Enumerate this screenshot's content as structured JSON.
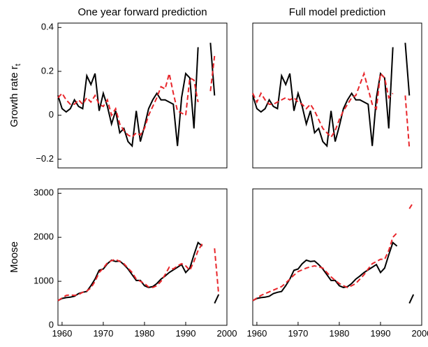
{
  "chart_data": [
    {
      "type": "line",
      "title": "One year forward prediction",
      "ylabel": "Growth rate r",
      "ylabel_subscript": "t",
      "x": [
        1959,
        1960,
        1961,
        1962,
        1963,
        1964,
        1965,
        1966,
        1967,
        1968,
        1969,
        1970,
        1971,
        1972,
        1973,
        1974,
        1975,
        1976,
        1977,
        1978,
        1979,
        1980,
        1981,
        1982,
        1983,
        1984,
        1985,
        1986,
        1987,
        1988,
        1989,
        1990,
        1991,
        1992,
        1993,
        1994,
        1995,
        1996,
        1997,
        1998
      ],
      "series": [
        {
          "color": "#000000",
          "linestyle": "solid",
          "values": [
            0.09,
            0.03,
            0.015,
            0.03,
            0.07,
            0.04,
            0.03,
            0.18,
            0.14,
            0.19,
            0.02,
            0.1,
            0.04,
            -0.04,
            0.02,
            -0.08,
            -0.06,
            -0.12,
            -0.14,
            0.02,
            -0.12,
            -0.05,
            0.03,
            0.07,
            0.1,
            0.07,
            0.07,
            0.06,
            0.05,
            -0.14,
            0.08,
            0.19,
            0.17,
            -0.06,
            0.31,
            null,
            null,
            0.33,
            0.09,
            null
          ]
        },
        {
          "color": "#e8262b",
          "linestyle": "dashed",
          "values": [
            0.08,
            0.1,
            0.07,
            0.05,
            0.05,
            0.07,
            0.05,
            0.08,
            0.06,
            0.09,
            0.05,
            0.04,
            0.07,
            0.0,
            0.03,
            -0.04,
            -0.07,
            -0.09,
            -0.1,
            -0.08,
            -0.09,
            -0.06,
            0.0,
            0.04,
            0.08,
            0.13,
            0.12,
            0.19,
            0.1,
            0.02,
            0.01,
            0.0,
            0.17,
            0.16,
            0.06,
            null,
            null,
            0.11,
            0.27,
            null
          ]
        }
      ],
      "xlim": [
        1959,
        2000
      ],
      "ylim": [
        -0.24,
        0.42
      ],
      "yticks": [
        {
          "value": -0.2,
          "label": "−0.2"
        },
        0,
        0.2,
        0.4
      ]
    },
    {
      "type": "line",
      "title": "Full model prediction",
      "x": [
        1959,
        1960,
        1961,
        1962,
        1963,
        1964,
        1965,
        1966,
        1967,
        1968,
        1969,
        1970,
        1971,
        1972,
        1973,
        1974,
        1975,
        1976,
        1977,
        1978,
        1979,
        1980,
        1981,
        1982,
        1983,
        1984,
        1985,
        1986,
        1987,
        1988,
        1989,
        1990,
        1991,
        1992,
        1993,
        1994,
        1995,
        1996,
        1997,
        1998
      ],
      "series": [
        {
          "color": "#000000",
          "linestyle": "solid",
          "values": [
            0.09,
            0.03,
            0.015,
            0.03,
            0.07,
            0.04,
            0.03,
            0.18,
            0.14,
            0.19,
            0.02,
            0.1,
            0.04,
            -0.04,
            0.02,
            -0.08,
            -0.06,
            -0.12,
            -0.14,
            0.02,
            -0.12,
            -0.05,
            0.03,
            0.07,
            0.1,
            0.07,
            0.07,
            0.06,
            0.05,
            -0.14,
            0.08,
            0.19,
            0.17,
            -0.06,
            0.31,
            null,
            null,
            0.33,
            0.09,
            null
          ]
        },
        {
          "color": "#e8262b",
          "linestyle": "dashed",
          "values": [
            0.1,
            0.06,
            0.1,
            0.07,
            0.05,
            0.05,
            0.06,
            0.07,
            0.08,
            0.07,
            0.08,
            0.06,
            0.05,
            0.03,
            0.05,
            0.02,
            -0.02,
            -0.06,
            -0.08,
            -0.1,
            -0.07,
            -0.02,
            0.02,
            0.05,
            0.08,
            0.09,
            0.14,
            0.19,
            0.12,
            0.05,
            0.03,
            0.19,
            0.17,
            0.08,
            0.1,
            null,
            null,
            0.09,
            -0.15,
            null
          ]
        }
      ],
      "xlim": [
        1959,
        2000
      ],
      "ylim": [
        -0.24,
        0.42
      ]
    },
    {
      "type": "line",
      "ylabel": "Moose",
      "x": [
        1959,
        1960,
        1961,
        1962,
        1963,
        1964,
        1965,
        1966,
        1967,
        1968,
        1969,
        1970,
        1971,
        1972,
        1973,
        1974,
        1975,
        1976,
        1977,
        1978,
        1979,
        1980,
        1981,
        1982,
        1983,
        1984,
        1985,
        1986,
        1987,
        1988,
        1989,
        1990,
        1991,
        1992,
        1993,
        1994,
        1995,
        1996,
        1997,
        1998
      ],
      "series": [
        {
          "color": "#000000",
          "linestyle": "solid",
          "values": [
            560,
            610,
            630,
            640,
            660,
            720,
            750,
            770,
            900,
            1050,
            1250,
            1280,
            1400,
            1480,
            1450,
            1460,
            1380,
            1280,
            1150,
            1020,
            1020,
            900,
            860,
            880,
            950,
            1050,
            1120,
            1200,
            1260,
            1320,
            1380,
            1200,
            1300,
            1600,
            1880,
            1800,
            null,
            null,
            500,
            700
          ]
        },
        {
          "color": "#e8262b",
          "linestyle": "dashed",
          "values": [
            560,
            620,
            680,
            690,
            680,
            700,
            750,
            780,
            850,
            1000,
            1200,
            1300,
            1420,
            1470,
            1500,
            1450,
            1400,
            1300,
            1200,
            1050,
            1000,
            950,
            870,
            860,
            900,
            1000,
            1150,
            1320,
            1280,
            1350,
            1400,
            1350,
            1250,
            1450,
            1700,
            1850,
            null,
            null,
            1750,
            700
          ]
        }
      ],
      "xlim": [
        1959,
        2000
      ],
      "ylim": [
        0,
        3100
      ],
      "yticks": [
        0,
        1000,
        2000,
        3000
      ],
      "xticks": [
        1960,
        1970,
        1980,
        1990,
        2000
      ]
    },
    {
      "type": "line",
      "x": [
        1959,
        1960,
        1961,
        1962,
        1963,
        1964,
        1965,
        1966,
        1967,
        1968,
        1969,
        1970,
        1971,
        1972,
        1973,
        1974,
        1975,
        1976,
        1977,
        1978,
        1979,
        1980,
        1981,
        1982,
        1983,
        1984,
        1985,
        1986,
        1987,
        1988,
        1989,
        1990,
        1991,
        1992,
        1993,
        1994,
        1995,
        1996,
        1997,
        1998
      ],
      "series": [
        {
          "color": "#000000",
          "linestyle": "solid",
          "values": [
            560,
            610,
            630,
            640,
            660,
            720,
            750,
            770,
            900,
            1050,
            1250,
            1280,
            1400,
            1480,
            1450,
            1460,
            1380,
            1280,
            1150,
            1020,
            1020,
            900,
            860,
            880,
            950,
            1050,
            1120,
            1200,
            1260,
            1320,
            1380,
            1200,
            1300,
            1600,
            1880,
            1800,
            null,
            null,
            500,
            700
          ]
        },
        {
          "color": "#e8262b",
          "linestyle": "dashed",
          "values": [
            560,
            620,
            680,
            720,
            760,
            800,
            840,
            880,
            960,
            1050,
            1140,
            1220,
            1260,
            1300,
            1330,
            1350,
            1330,
            1300,
            1200,
            1100,
            1020,
            950,
            900,
            860,
            900,
            950,
            1050,
            1150,
            1280,
            1400,
            1450,
            1500,
            1500,
            1700,
            2000,
            2100,
            null,
            null,
            2650,
            2800
          ]
        }
      ],
      "xlim": [
        1959,
        2000
      ],
      "ylim": [
        0,
        3100
      ],
      "xticks": [
        1960,
        1970,
        1980,
        1990,
        2000
      ]
    }
  ]
}
